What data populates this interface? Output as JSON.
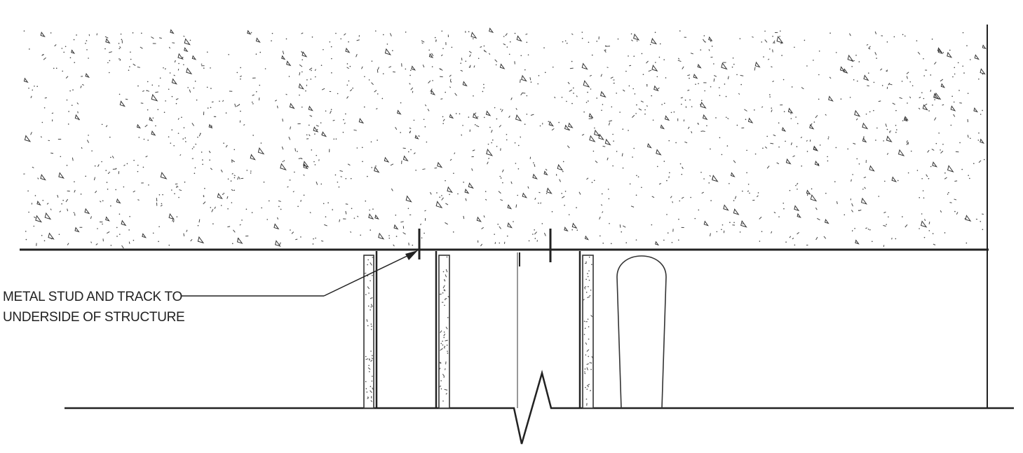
{
  "callout": {
    "line1": "METAL STUD AND TRACK TO",
    "line2": "UNDERSIDE OF STRUCTURE"
  },
  "colors": {
    "ink": "#222222",
    "background": "#ffffff"
  }
}
